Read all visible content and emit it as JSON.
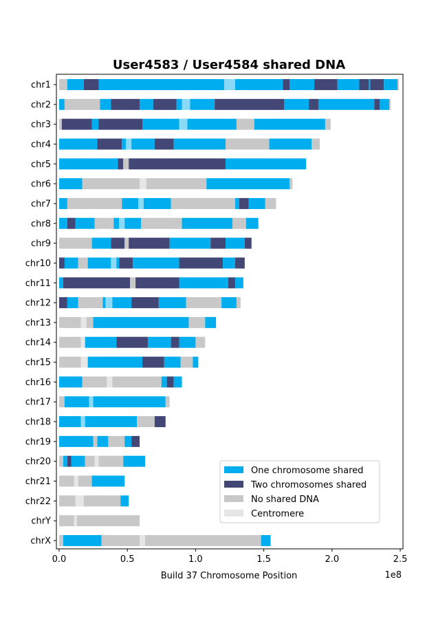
{
  "chart_data": {
    "type": "bar",
    "orientation": "horizontal-segments",
    "title": "User4583 / User4584 shared DNA",
    "xlabel": "Build 37 Chromosome Position",
    "x_scale_label": "1e8",
    "xlim": [
      -0.02,
      2.52
    ],
    "x_ticks": [
      {
        "value": 0.0,
        "label": "0.0"
      },
      {
        "value": 0.5,
        "label": "0.5"
      },
      {
        "value": 1.0,
        "label": "1.0"
      },
      {
        "value": 1.5,
        "label": "1.5"
      },
      {
        "value": 2.0,
        "label": "2.0"
      },
      {
        "value": 2.5,
        "label": "2.5"
      }
    ],
    "colors": {
      "one": "#00aeef",
      "two": "#434775",
      "none": "#c8c8c8",
      "centromere": "#8ad9f7",
      "centromere_gray": "#e6e6e6"
    },
    "legend": {
      "placement": "lower-right",
      "entries": [
        {
          "key": "one",
          "label": "One chromosome shared"
        },
        {
          "key": "two",
          "label": "Two chromosomes shared"
        },
        {
          "key": "none",
          "label": "No shared DNA"
        },
        {
          "key": "centromere_gray",
          "label": "Centromere"
        }
      ]
    },
    "chromosomes": [
      {
        "name": "chr1",
        "segments": [
          [
            "none",
            0,
            0.06
          ],
          [
            "one",
            0.06,
            0.18
          ],
          [
            "two",
            0.18,
            0.29
          ],
          [
            "one",
            0.29,
            1.21
          ],
          [
            "centromere",
            1.21,
            1.29
          ],
          [
            "one",
            1.29,
            1.64
          ],
          [
            "two",
            1.64,
            1.69
          ],
          [
            "one",
            1.69,
            1.87
          ],
          [
            "two",
            1.87,
            2.04
          ],
          [
            "one",
            2.04,
            2.2
          ],
          [
            "two",
            2.2,
            2.27
          ],
          [
            "one",
            2.27,
            2.28
          ],
          [
            "two",
            2.28,
            2.38
          ],
          [
            "one",
            2.38,
            2.48
          ],
          [
            "none",
            2.48,
            2.49
          ]
        ]
      },
      {
        "name": "chr2",
        "segments": [
          [
            "one",
            0,
            0.04
          ],
          [
            "none",
            0.04,
            0.3
          ],
          [
            "one",
            0.3,
            0.38
          ],
          [
            "two",
            0.38,
            0.59
          ],
          [
            "one",
            0.59,
            0.69
          ],
          [
            "two",
            0.69,
            0.86
          ],
          [
            "one",
            0.86,
            0.9
          ],
          [
            "centromere",
            0.9,
            0.96
          ],
          [
            "one",
            0.96,
            1.14
          ],
          [
            "two",
            1.14,
            1.65
          ],
          [
            "one",
            1.65,
            1.83
          ],
          [
            "two",
            1.83,
            1.9
          ],
          [
            "one",
            1.9,
            2.31
          ],
          [
            "two",
            2.31,
            2.35
          ],
          [
            "one",
            2.35,
            2.42
          ],
          [
            "none",
            2.42,
            2.43
          ]
        ]
      },
      {
        "name": "chr3",
        "segments": [
          [
            "none",
            0,
            0.02
          ],
          [
            "two",
            0.02,
            0.24
          ],
          [
            "one",
            0.24,
            0.29
          ],
          [
            "two",
            0.29,
            0.61
          ],
          [
            "one",
            0.61,
            0.88
          ],
          [
            "centromere",
            0.88,
            0.94
          ],
          [
            "one",
            0.94,
            1.3
          ],
          [
            "none",
            1.3,
            1.43
          ],
          [
            "one",
            1.43,
            1.95
          ],
          [
            "none",
            1.95,
            1.99
          ]
        ]
      },
      {
        "name": "chr4",
        "segments": [
          [
            "one",
            0,
            0.28
          ],
          [
            "two",
            0.28,
            0.46
          ],
          [
            "one",
            0.46,
            0.49
          ],
          [
            "centromere",
            0.49,
            0.53
          ],
          [
            "one",
            0.53,
            0.7
          ],
          [
            "two",
            0.7,
            0.84
          ],
          [
            "one",
            0.84,
            1.22
          ],
          [
            "none",
            1.22,
            1.54
          ],
          [
            "one",
            1.54,
            1.85
          ],
          [
            "none",
            1.85,
            1.91
          ]
        ]
      },
      {
        "name": "chr5",
        "segments": [
          [
            "one",
            0,
            0.43
          ],
          [
            "two",
            0.43,
            0.47
          ],
          [
            "none",
            0.47,
            0.51
          ],
          [
            "two",
            0.51,
            1.22
          ],
          [
            "one",
            1.22,
            1.81
          ]
        ]
      },
      {
        "name": "chr6",
        "segments": [
          [
            "one",
            0,
            0.17
          ],
          [
            "none",
            0.17,
            0.59
          ],
          [
            "centromere_gray",
            0.59,
            0.64
          ],
          [
            "none",
            0.64,
            1.08
          ],
          [
            "one",
            1.08,
            1.69
          ],
          [
            "none",
            1.69,
            1.71
          ]
        ]
      },
      {
        "name": "chr7",
        "segments": [
          [
            "one",
            0,
            0.06
          ],
          [
            "none",
            0.06,
            0.46
          ],
          [
            "one",
            0.46,
            0.58
          ],
          [
            "centromere",
            0.58,
            0.62
          ],
          [
            "one",
            0.62,
            0.82
          ],
          [
            "none",
            0.82,
            1.29
          ],
          [
            "one",
            1.29,
            1.32
          ],
          [
            "two",
            1.32,
            1.39
          ],
          [
            "one",
            1.39,
            1.51
          ],
          [
            "none",
            1.51,
            1.59
          ]
        ]
      },
      {
        "name": "chr8",
        "segments": [
          [
            "one",
            0,
            0.06
          ],
          [
            "two",
            0.06,
            0.12
          ],
          [
            "one",
            0.12,
            0.26
          ],
          [
            "none",
            0.26,
            0.4
          ],
          [
            "one",
            0.4,
            0.44
          ],
          [
            "centromere",
            0.44,
            0.48
          ],
          [
            "one",
            0.48,
            0.6
          ],
          [
            "none",
            0.6,
            0.9
          ],
          [
            "one",
            0.9,
            1.27
          ],
          [
            "none",
            1.27,
            1.37
          ],
          [
            "one",
            1.37,
            1.46
          ]
        ]
      },
      {
        "name": "chr9",
        "segments": [
          [
            "none",
            0,
            0.24
          ],
          [
            "one",
            0.24,
            0.38
          ],
          [
            "two",
            0.38,
            0.48
          ],
          [
            "none",
            0.48,
            0.51
          ],
          [
            "two",
            0.51,
            0.81
          ],
          [
            "one",
            0.81,
            1.11
          ],
          [
            "two",
            1.11,
            1.22
          ],
          [
            "one",
            1.22,
            1.36
          ],
          [
            "two",
            1.36,
            1.41
          ]
        ]
      },
      {
        "name": "chr10",
        "segments": [
          [
            "two",
            0,
            0.04
          ],
          [
            "one",
            0.04,
            0.14
          ],
          [
            "none",
            0.14,
            0.21
          ],
          [
            "one",
            0.21,
            0.38
          ],
          [
            "centromere",
            0.38,
            0.42
          ],
          [
            "one",
            0.42,
            0.44
          ],
          [
            "two",
            0.44,
            0.54
          ],
          [
            "one",
            0.54,
            0.88
          ],
          [
            "two",
            0.88,
            1.2
          ],
          [
            "one",
            1.2,
            1.29
          ],
          [
            "two",
            1.29,
            1.36
          ]
        ]
      },
      {
        "name": "chr11",
        "segments": [
          [
            "one",
            0,
            0.03
          ],
          [
            "two",
            0.03,
            0.52
          ],
          [
            "none",
            0.52,
            0.56
          ],
          [
            "two",
            0.56,
            0.88
          ],
          [
            "one",
            0.88,
            1.24
          ],
          [
            "two",
            1.24,
            1.29
          ],
          [
            "one",
            1.29,
            1.35
          ]
        ]
      },
      {
        "name": "chr12",
        "segments": [
          [
            "two",
            0,
            0.06
          ],
          [
            "one",
            0.06,
            0.14
          ],
          [
            "none",
            0.14,
            0.32
          ],
          [
            "one",
            0.32,
            0.34
          ],
          [
            "centromere",
            0.34,
            0.39
          ],
          [
            "one",
            0.39,
            0.53
          ],
          [
            "two",
            0.53,
            0.73
          ],
          [
            "one",
            0.73,
            0.93
          ],
          [
            "none",
            0.93,
            1.19
          ],
          [
            "one",
            1.19,
            1.3
          ],
          [
            "none",
            1.3,
            1.33
          ]
        ]
      },
      {
        "name": "chr13",
        "segments": [
          [
            "none",
            0,
            0.16
          ],
          [
            "centromere_gray",
            0.16,
            0.2
          ],
          [
            "none",
            0.2,
            0.25
          ],
          [
            "one",
            0.25,
            0.95
          ],
          [
            "none",
            0.95,
            1.07
          ],
          [
            "one",
            1.07,
            1.15
          ]
        ]
      },
      {
        "name": "chr14",
        "segments": [
          [
            "none",
            0,
            0.16
          ],
          [
            "centromere_gray",
            0.16,
            0.19
          ],
          [
            "one",
            0.19,
            0.42
          ],
          [
            "two",
            0.42,
            0.65
          ],
          [
            "one",
            0.65,
            0.82
          ],
          [
            "two",
            0.82,
            0.88
          ],
          [
            "one",
            0.88,
            1.0
          ],
          [
            "none",
            1.0,
            1.07
          ]
        ]
      },
      {
        "name": "chr15",
        "segments": [
          [
            "none",
            0,
            0.16
          ],
          [
            "centromere_gray",
            0.16,
            0.21
          ],
          [
            "one",
            0.21,
            0.61
          ],
          [
            "two",
            0.61,
            0.77
          ],
          [
            "one",
            0.77,
            0.89
          ],
          [
            "none",
            0.89,
            0.98
          ],
          [
            "one",
            0.98,
            1.02
          ]
        ]
      },
      {
        "name": "chr16",
        "segments": [
          [
            "one",
            0,
            0.17
          ],
          [
            "none",
            0.17,
            0.35
          ],
          [
            "centromere_gray",
            0.35,
            0.39
          ],
          [
            "none",
            0.39,
            0.75
          ],
          [
            "one",
            0.75,
            0.79
          ],
          [
            "two",
            0.79,
            0.84
          ],
          [
            "one",
            0.84,
            0.9
          ]
        ]
      },
      {
        "name": "chr17",
        "segments": [
          [
            "none",
            0,
            0.04
          ],
          [
            "one",
            0.04,
            0.22
          ],
          [
            "centromere",
            0.22,
            0.25
          ],
          [
            "one",
            0.25,
            0.78
          ],
          [
            "none",
            0.78,
            0.81
          ]
        ]
      },
      {
        "name": "chr18",
        "segments": [
          [
            "one",
            0,
            0.16
          ],
          [
            "centromere",
            0.16,
            0.19
          ],
          [
            "one",
            0.19,
            0.57
          ],
          [
            "none",
            0.57,
            0.7
          ],
          [
            "two",
            0.7,
            0.78
          ]
        ]
      },
      {
        "name": "chr19",
        "segments": [
          [
            "one",
            0,
            0.25
          ],
          [
            "none",
            0.25,
            0.28
          ],
          [
            "one",
            0.28,
            0.36
          ],
          [
            "none",
            0.36,
            0.48
          ],
          [
            "one",
            0.48,
            0.53
          ],
          [
            "two",
            0.53,
            0.59
          ]
        ]
      },
      {
        "name": "chr20",
        "segments": [
          [
            "none",
            0,
            0.03
          ],
          [
            "one",
            0.03,
            0.06
          ],
          [
            "two",
            0.06,
            0.09
          ],
          [
            "one",
            0.09,
            0.19
          ],
          [
            "none",
            0.19,
            0.26
          ],
          [
            "centromere_gray",
            0.26,
            0.29
          ],
          [
            "none",
            0.29,
            0.47
          ],
          [
            "one",
            0.47,
            0.63
          ]
        ]
      },
      {
        "name": "chr21",
        "segments": [
          [
            "none",
            0,
            0.11
          ],
          [
            "centromere_gray",
            0.11,
            0.14
          ],
          [
            "none",
            0.14,
            0.24
          ],
          [
            "one",
            0.24,
            0.48
          ]
        ]
      },
      {
        "name": "chr22",
        "segments": [
          [
            "none",
            0,
            0.12
          ],
          [
            "centromere_gray",
            0.12,
            0.18
          ],
          [
            "none",
            0.18,
            0.45
          ],
          [
            "one",
            0.45,
            0.51
          ]
        ]
      },
      {
        "name": "chrY",
        "segments": [
          [
            "none",
            0,
            0.11
          ],
          [
            "centromere_gray",
            0.11,
            0.13
          ],
          [
            "none",
            0.13,
            0.59
          ]
        ]
      },
      {
        "name": "chrX",
        "segments": [
          [
            "none",
            0,
            0.03
          ],
          [
            "one",
            0.03,
            0.31
          ],
          [
            "none",
            0.31,
            0.59
          ],
          [
            "centromere_gray",
            0.59,
            0.63
          ],
          [
            "none",
            0.63,
            1.48
          ],
          [
            "one",
            1.48,
            1.55
          ]
        ]
      }
    ]
  }
}
